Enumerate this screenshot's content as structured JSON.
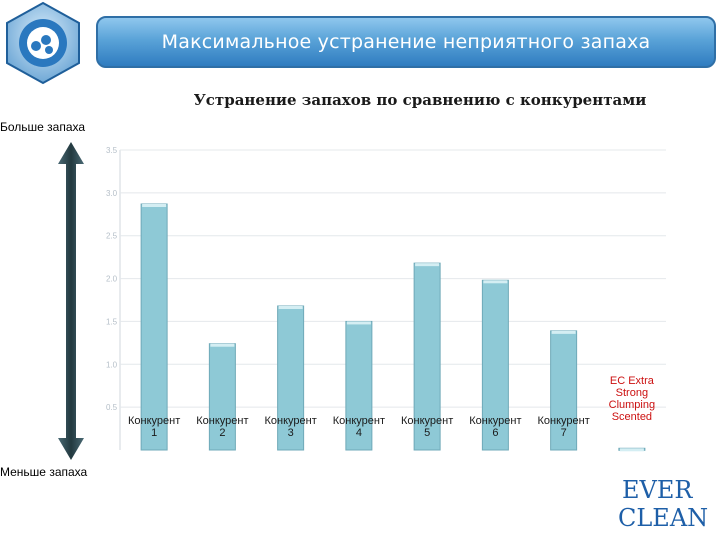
{
  "header": {
    "title": "Максимальное устранение неприятного запаха"
  },
  "scale": {
    "more_label": "Больше запаха",
    "less_label": "Меньше запаха"
  },
  "chart_data": {
    "type": "bar",
    "title": "Устранение запахов по сравнению с конкурентами",
    "xlabel": "",
    "ylabel": "",
    "ylim": [
      0,
      3.5
    ],
    "yticks": [
      "0.5",
      "1.0",
      "1.5",
      "2.0",
      "2.5",
      "3.0",
      "3.5"
    ],
    "grid": true,
    "legend": "none",
    "categories": [
      "Конкурент 1",
      "Конкурент 2",
      "Конкурент 3",
      "Конкурент 4",
      "Конкурент 5",
      "Конкурент 6",
      "Конкурент 7",
      "EC Extra Strong Clumping Scented"
    ],
    "category_lines": [
      [
        "Конкурент",
        "1"
      ],
      [
        "Конкурент",
        "2"
      ],
      [
        "Конкурент",
        "3"
      ],
      [
        "Конкурент",
        "4"
      ],
      [
        "Конкурент",
        "5"
      ],
      [
        "Конкурент",
        "6"
      ],
      [
        "Конкурент",
        "7"
      ],
      [
        "EC Extra",
        "Strong",
        "Clumping",
        "Scented"
      ]
    ],
    "values": [
      2.87,
      1.24,
      1.68,
      1.5,
      2.18,
      1.98,
      1.39,
      0.02
    ],
    "bar_color": "#8ec9d6",
    "highlight_label_color": "#cc1111"
  },
  "brand": {
    "line1": "EVER",
    "line2": "CLEAN"
  },
  "colors": {
    "banner": "#4d97d3",
    "arrow": "#2f4a55"
  }
}
